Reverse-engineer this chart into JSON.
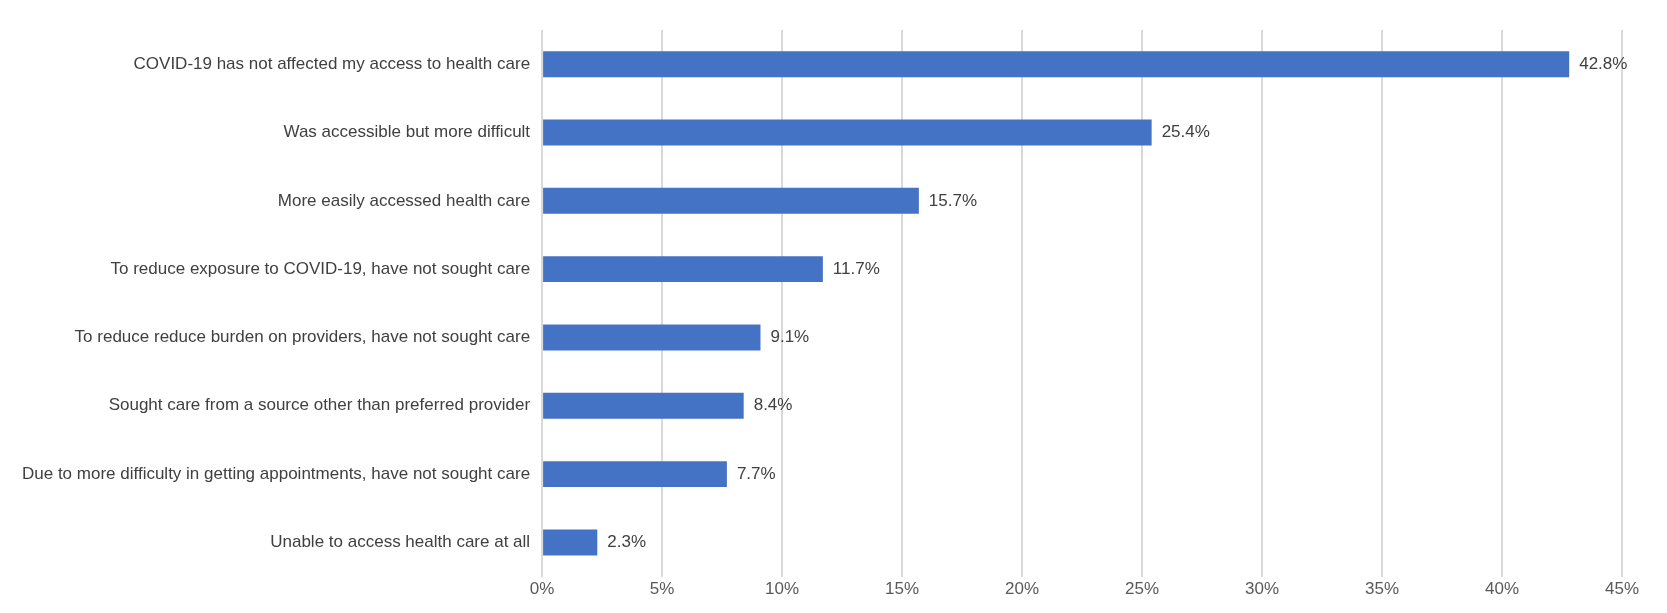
{
  "chart_data": {
    "type": "bar",
    "orientation": "horizontal",
    "categories": [
      "COVID-19 has not affected my access to health care",
      "Was accessible but more difficult",
      "More easily accessed health care",
      "To reduce exposure to COVID-19, have not sought care",
      "To reduce reduce burden on providers, have not sought care",
      "Sought care from a source other than preferred provider",
      "Due to more difficulty in getting appointments, have not sought care",
      "Unable to access health care at all"
    ],
    "values": [
      42.8,
      25.4,
      15.7,
      11.7,
      9.1,
      8.4,
      7.7,
      2.3
    ],
    "value_labels": [
      "42.8%",
      "25.4%",
      "15.7%",
      "11.7%",
      "9.1%",
      "8.4%",
      "7.7%",
      "2.3%"
    ],
    "color": "#4472c4",
    "xlim": [
      0,
      45
    ],
    "xticks": [
      {
        "value": 0,
        "label": "0%"
      },
      {
        "value": 5,
        "label": "5%"
      },
      {
        "value": 10,
        "label": "10%"
      },
      {
        "value": 15,
        "label": "15%"
      },
      {
        "value": 20,
        "label": "20%"
      },
      {
        "value": 25,
        "label": "25%"
      },
      {
        "value": 30,
        "label": "30%"
      },
      {
        "value": 35,
        "label": "35%"
      },
      {
        "value": 40,
        "label": "40%"
      },
      {
        "value": 45,
        "label": "45%"
      }
    ],
    "grid": "x",
    "legend": false
  }
}
